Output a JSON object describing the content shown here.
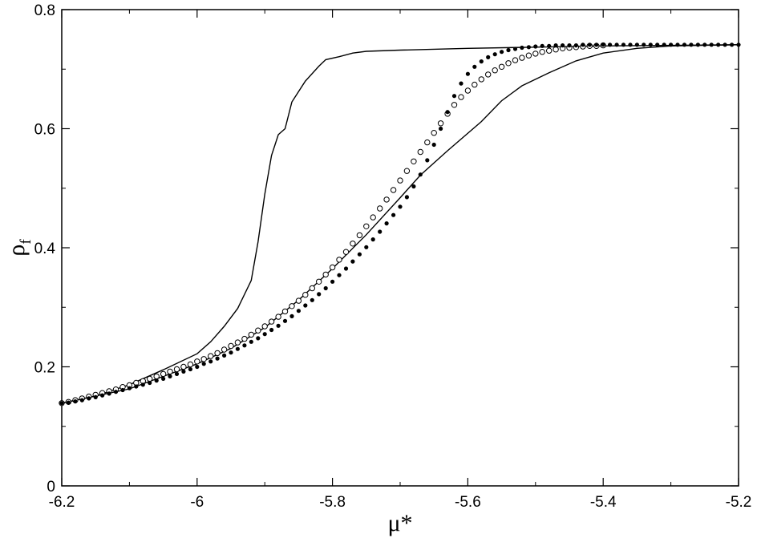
{
  "chart_data": {
    "type": "line",
    "title": "",
    "xlabel": "μ*",
    "ylabel_main": "ρ",
    "ylabel_sub": "f",
    "xlim": [
      -6.2,
      -5.2
    ],
    "ylim": [
      0,
      0.8
    ],
    "grid": false,
    "legend": "none",
    "x_ticks": [
      -6.2,
      -6.0,
      -5.8,
      -5.6,
      -5.4,
      -5.2
    ],
    "x_tick_labels": [
      "-6.2",
      "-6",
      "-5.8",
      "-5.6",
      "-5.4",
      "-5.2"
    ],
    "y_ticks": [
      0,
      0.2,
      0.4,
      0.6,
      0.8
    ],
    "y_tick_labels": [
      "0",
      "0.2",
      "0.4",
      "0.6",
      "0.8"
    ],
    "series": [
      {
        "style": "solid-line",
        "points": [
          [
            -6.2,
            0.139
          ],
          [
            -6.15,
            0.151
          ],
          [
            -6.1,
            0.17
          ],
          [
            -6.05,
            0.195
          ],
          [
            -6.0,
            0.222
          ],
          [
            -5.98,
            0.242
          ],
          [
            -5.96,
            0.268
          ],
          [
            -5.94,
            0.298
          ],
          [
            -5.92,
            0.345
          ],
          [
            -5.91,
            0.41
          ],
          [
            -5.9,
            0.49
          ],
          [
            -5.89,
            0.555
          ],
          [
            -5.88,
            0.59
          ],
          [
            -5.87,
            0.6
          ],
          [
            -5.86,
            0.645
          ],
          [
            -5.84,
            0.68
          ],
          [
            -5.82,
            0.705
          ],
          [
            -5.81,
            0.716
          ],
          [
            -5.79,
            0.721
          ],
          [
            -5.77,
            0.727
          ],
          [
            -5.75,
            0.73
          ],
          [
            -5.7,
            0.732
          ],
          [
            -5.6,
            0.735
          ],
          [
            -5.5,
            0.737
          ],
          [
            -5.4,
            0.739
          ],
          [
            -5.3,
            0.74
          ],
          [
            -5.2,
            0.741
          ]
        ]
      },
      {
        "style": "solid-line",
        "points": [
          [
            -6.2,
            0.139
          ],
          [
            -6.1,
            0.163
          ],
          [
            -6.0,
            0.205
          ],
          [
            -5.95,
            0.231
          ],
          [
            -5.9,
            0.266
          ],
          [
            -5.85,
            0.312
          ],
          [
            -5.8,
            0.365
          ],
          [
            -5.75,
            0.422
          ],
          [
            -5.7,
            0.484
          ],
          [
            -5.67,
            0.522
          ],
          [
            -5.63,
            0.563
          ],
          [
            -5.58,
            0.612
          ],
          [
            -5.55,
            0.647
          ],
          [
            -5.52,
            0.672
          ],
          [
            -5.48,
            0.694
          ],
          [
            -5.44,
            0.714
          ],
          [
            -5.4,
            0.727
          ],
          [
            -5.35,
            0.735
          ],
          [
            -5.3,
            0.739
          ],
          [
            -5.2,
            0.741
          ]
        ]
      },
      {
        "style": "open-circles",
        "points": [
          [
            -6.2,
            0.139
          ],
          [
            -6.19,
            0.141
          ],
          [
            -6.18,
            0.144
          ],
          [
            -6.17,
            0.147
          ],
          [
            -6.16,
            0.15
          ],
          [
            -6.15,
            0.153
          ],
          [
            -6.14,
            0.156
          ],
          [
            -6.13,
            0.159
          ],
          [
            -6.12,
            0.162
          ],
          [
            -6.11,
            0.166
          ],
          [
            -6.1,
            0.169
          ],
          [
            -6.09,
            0.173
          ],
          [
            -6.08,
            0.176
          ],
          [
            -6.07,
            0.18
          ],
          [
            -6.06,
            0.184
          ],
          [
            -6.05,
            0.188
          ],
          [
            -6.04,
            0.192
          ],
          [
            -6.03,
            0.196
          ],
          [
            -6.02,
            0.2
          ],
          [
            -6.01,
            0.204
          ],
          [
            -6.0,
            0.209
          ],
          [
            -5.99,
            0.213
          ],
          [
            -5.98,
            0.218
          ],
          [
            -5.97,
            0.223
          ],
          [
            -5.96,
            0.229
          ],
          [
            -5.95,
            0.235
          ],
          [
            -5.94,
            0.241
          ],
          [
            -5.93,
            0.247
          ],
          [
            -5.92,
            0.254
          ],
          [
            -5.91,
            0.261
          ],
          [
            -5.9,
            0.268
          ],
          [
            -5.89,
            0.276
          ],
          [
            -5.88,
            0.284
          ],
          [
            -5.87,
            0.293
          ],
          [
            -5.86,
            0.302
          ],
          [
            -5.85,
            0.311
          ],
          [
            -5.84,
            0.321
          ],
          [
            -5.83,
            0.332
          ],
          [
            -5.82,
            0.343
          ],
          [
            -5.81,
            0.355
          ],
          [
            -5.8,
            0.367
          ],
          [
            -5.79,
            0.38
          ],
          [
            -5.78,
            0.393
          ],
          [
            -5.77,
            0.407
          ],
          [
            -5.76,
            0.421
          ],
          [
            -5.75,
            0.436
          ],
          [
            -5.74,
            0.451
          ],
          [
            -5.73,
            0.466
          ],
          [
            -5.72,
            0.481
          ],
          [
            -5.71,
            0.497
          ],
          [
            -5.7,
            0.513
          ],
          [
            -5.69,
            0.529
          ],
          [
            -5.68,
            0.545
          ],
          [
            -5.67,
            0.561
          ],
          [
            -5.66,
            0.577
          ],
          [
            -5.65,
            0.593
          ],
          [
            -5.64,
            0.609
          ],
          [
            -5.63,
            0.625
          ],
          [
            -5.62,
            0.64
          ],
          [
            -5.61,
            0.653
          ],
          [
            -5.6,
            0.664
          ],
          [
            -5.59,
            0.674
          ],
          [
            -5.58,
            0.683
          ],
          [
            -5.57,
            0.691
          ],
          [
            -5.56,
            0.698
          ],
          [
            -5.55,
            0.704
          ],
          [
            -5.54,
            0.71
          ],
          [
            -5.53,
            0.715
          ],
          [
            -5.52,
            0.719
          ],
          [
            -5.51,
            0.723
          ],
          [
            -5.5,
            0.726
          ],
          [
            -5.49,
            0.729
          ],
          [
            -5.48,
            0.731
          ],
          [
            -5.47,
            0.733
          ],
          [
            -5.46,
            0.735
          ],
          [
            -5.45,
            0.736
          ],
          [
            -5.44,
            0.737
          ],
          [
            -5.43,
            0.738
          ],
          [
            -5.42,
            0.739
          ],
          [
            -5.41,
            0.739
          ],
          [
            -5.4,
            0.74
          ]
        ]
      },
      {
        "style": "filled-points",
        "points": [
          [
            -6.2,
            0.139
          ],
          [
            -6.19,
            0.14
          ],
          [
            -6.18,
            0.142
          ],
          [
            -6.17,
            0.144
          ],
          [
            -6.16,
            0.147
          ],
          [
            -6.15,
            0.149
          ],
          [
            -6.14,
            0.152
          ],
          [
            -6.13,
            0.155
          ],
          [
            -6.12,
            0.158
          ],
          [
            -6.11,
            0.161
          ],
          [
            -6.1,
            0.164
          ],
          [
            -6.09,
            0.167
          ],
          [
            -6.08,
            0.17
          ],
          [
            -6.07,
            0.173
          ],
          [
            -6.06,
            0.177
          ],
          [
            -6.05,
            0.18
          ],
          [
            -6.04,
            0.184
          ],
          [
            -6.03,
            0.188
          ],
          [
            -6.02,
            0.192
          ],
          [
            -6.01,
            0.196
          ],
          [
            -6.0,
            0.2
          ],
          [
            -5.99,
            0.205
          ],
          [
            -5.98,
            0.209
          ],
          [
            -5.97,
            0.214
          ],
          [
            -5.96,
            0.219
          ],
          [
            -5.95,
            0.224
          ],
          [
            -5.94,
            0.23
          ],
          [
            -5.93,
            0.236
          ],
          [
            -5.92,
            0.242
          ],
          [
            -5.91,
            0.248
          ],
          [
            -5.9,
            0.255
          ],
          [
            -5.89,
            0.262
          ],
          [
            -5.88,
            0.269
          ],
          [
            -5.87,
            0.277
          ],
          [
            -5.86,
            0.285
          ],
          [
            -5.85,
            0.294
          ],
          [
            -5.84,
            0.303
          ],
          [
            -5.83,
            0.312
          ],
          [
            -5.82,
            0.322
          ],
          [
            -5.81,
            0.332
          ],
          [
            -5.8,
            0.343
          ],
          [
            -5.79,
            0.354
          ],
          [
            -5.78,
            0.365
          ],
          [
            -5.77,
            0.377
          ],
          [
            -5.76,
            0.389
          ],
          [
            -5.75,
            0.401
          ],
          [
            -5.74,
            0.414
          ],
          [
            -5.73,
            0.427
          ],
          [
            -5.72,
            0.441
          ],
          [
            -5.71,
            0.455
          ],
          [
            -5.7,
            0.469
          ],
          [
            -5.69,
            0.485
          ],
          [
            -5.68,
            0.503
          ],
          [
            -5.67,
            0.523
          ],
          [
            -5.66,
            0.547
          ],
          [
            -5.65,
            0.573
          ],
          [
            -5.64,
            0.6
          ],
          [
            -5.63,
            0.628
          ],
          [
            -5.62,
            0.655
          ],
          [
            -5.61,
            0.676
          ],
          [
            -5.6,
            0.692
          ],
          [
            -5.59,
            0.704
          ],
          [
            -5.58,
            0.713
          ],
          [
            -5.57,
            0.72
          ],
          [
            -5.56,
            0.725
          ],
          [
            -5.55,
            0.729
          ],
          [
            -5.54,
            0.732
          ],
          [
            -5.53,
            0.734
          ],
          [
            -5.52,
            0.736
          ],
          [
            -5.51,
            0.737
          ],
          [
            -5.5,
            0.738
          ],
          [
            -5.49,
            0.739
          ],
          [
            -5.48,
            0.739
          ],
          [
            -5.47,
            0.74
          ],
          [
            -5.46,
            0.74
          ],
          [
            -5.45,
            0.74
          ],
          [
            -5.44,
            0.74
          ],
          [
            -5.43,
            0.741
          ],
          [
            -5.42,
            0.741
          ],
          [
            -5.41,
            0.741
          ],
          [
            -5.4,
            0.741
          ],
          [
            -5.39,
            0.741
          ],
          [
            -5.38,
            0.741
          ],
          [
            -5.37,
            0.741
          ],
          [
            -5.36,
            0.741
          ],
          [
            -5.35,
            0.741
          ],
          [
            -5.34,
            0.741
          ],
          [
            -5.33,
            0.741
          ],
          [
            -5.32,
            0.741
          ],
          [
            -5.31,
            0.741
          ],
          [
            -5.3,
            0.741
          ],
          [
            -5.29,
            0.741
          ],
          [
            -5.28,
            0.741
          ],
          [
            -5.27,
            0.741
          ],
          [
            -5.26,
            0.741
          ],
          [
            -5.25,
            0.741
          ],
          [
            -5.24,
            0.741
          ],
          [
            -5.23,
            0.741
          ],
          [
            -5.22,
            0.741
          ],
          [
            -5.21,
            0.741
          ],
          [
            -5.2,
            0.741
          ]
        ]
      }
    ]
  }
}
